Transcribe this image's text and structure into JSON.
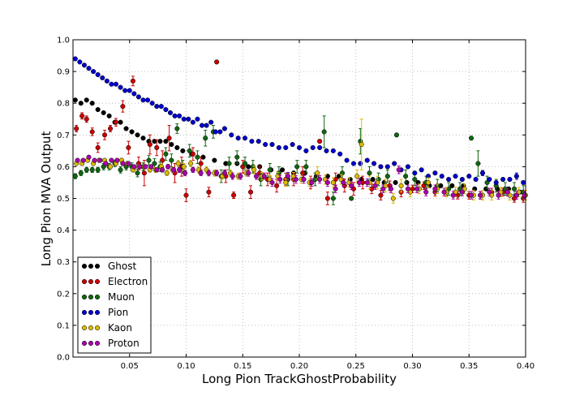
{
  "chart_data": {
    "type": "scatter",
    "xlabel": "Long Pion TrackGhostProbability",
    "ylabel": "Long Pion MVA Output",
    "xlim": [
      0.0,
      0.4
    ],
    "ylim": [
      0.0,
      1.0
    ],
    "xticks": [
      0.05,
      0.1,
      0.15,
      0.2,
      0.25,
      0.3,
      0.35,
      0.4
    ],
    "xtick_labels": [
      "0.05",
      "0.10",
      "0.15",
      "0.20",
      "0.25",
      "0.30",
      "0.35",
      "0.40"
    ],
    "yticks": [
      0.0,
      0.1,
      0.2,
      0.3,
      0.4,
      0.5,
      0.6,
      0.7,
      0.8,
      0.9,
      1.0
    ],
    "ytick_labels": [
      "0.0",
      "0.1",
      "0.2",
      "0.3",
      "0.4",
      "0.5",
      "0.6",
      "0.7",
      "0.8",
      "0.9",
      "1.0"
    ],
    "grid": true,
    "legend_position": "lower-left",
    "series": [
      {
        "name": "Ghost",
        "color": "#000000",
        "x": [
          0.002,
          0.007,
          0.012,
          0.017,
          0.022,
          0.027,
          0.032,
          0.037,
          0.042,
          0.047,
          0.052,
          0.057,
          0.062,
          0.067,
          0.072,
          0.077,
          0.082,
          0.087,
          0.092,
          0.097,
          0.105,
          0.115,
          0.125,
          0.135,
          0.145,
          0.155,
          0.165,
          0.175,
          0.185,
          0.195,
          0.205,
          0.215,
          0.225,
          0.235,
          0.245,
          0.255,
          0.265,
          0.275,
          0.285,
          0.295,
          0.305,
          0.315,
          0.325,
          0.335,
          0.345,
          0.355,
          0.365,
          0.375,
          0.385,
          0.395
        ],
        "y": [
          0.81,
          0.8,
          0.81,
          0.8,
          0.78,
          0.77,
          0.76,
          0.74,
          0.74,
          0.72,
          0.71,
          0.7,
          0.69,
          0.68,
          0.68,
          0.68,
          0.68,
          0.67,
          0.66,
          0.65,
          0.64,
          0.63,
          0.62,
          0.61,
          0.61,
          0.6,
          0.6,
          0.59,
          0.59,
          0.58,
          0.58,
          0.57,
          0.57,
          0.57,
          0.56,
          0.56,
          0.56,
          0.55,
          0.55,
          0.55,
          0.55,
          0.54,
          0.54,
          0.54,
          0.54,
          0.53,
          0.53,
          0.53,
          0.53,
          0.52
        ],
        "yerr": [
          0.004,
          0.004,
          0.004,
          0.004,
          0.004,
          0.004,
          0.004,
          0.004,
          0.004,
          0.004,
          0.004,
          0.004,
          0.004,
          0.004,
          0.004,
          0.004,
          0.004,
          0.004,
          0.004,
          0.004,
          0.004,
          0.004,
          0.004,
          0.004,
          0.004,
          0.004,
          0.004,
          0.004,
          0.004,
          0.004,
          0.004,
          0.004,
          0.004,
          0.004,
          0.004,
          0.004,
          0.004,
          0.004,
          0.004,
          0.004,
          0.004,
          0.004,
          0.004,
          0.004,
          0.004,
          0.004,
          0.004,
          0.004,
          0.004,
          0.004
        ]
      },
      {
        "name": "Electron",
        "color": "#cc0000",
        "x": [
          0.003,
          0.008,
          0.012,
          0.017,
          0.022,
          0.028,
          0.033,
          0.038,
          0.044,
          0.049,
          0.053,
          0.058,
          0.063,
          0.068,
          0.074,
          0.079,
          0.085,
          0.09,
          0.096,
          0.1,
          0.106,
          0.113,
          0.12,
          0.127,
          0.135,
          0.142,
          0.15,
          0.157,
          0.165,
          0.172,
          0.18,
          0.188,
          0.195,
          0.203,
          0.21,
          0.218,
          0.225,
          0.232,
          0.24,
          0.248,
          0.256,
          0.264,
          0.272,
          0.28,
          0.29,
          0.3,
          0.31,
          0.32,
          0.33,
          0.34,
          0.35,
          0.36,
          0.37,
          0.38,
          0.39,
          0.398
        ],
        "y": [
          0.72,
          0.76,
          0.75,
          0.71,
          0.66,
          0.7,
          0.72,
          0.74,
          0.79,
          0.66,
          0.87,
          0.61,
          0.58,
          0.67,
          0.66,
          0.62,
          0.69,
          0.58,
          0.6,
          0.51,
          0.64,
          0.61,
          0.52,
          0.93,
          0.57,
          0.51,
          0.6,
          0.52,
          0.58,
          0.56,
          0.54,
          0.56,
          0.56,
          0.58,
          0.55,
          0.68,
          0.5,
          0.56,
          0.54,
          0.53,
          0.55,
          0.53,
          0.51,
          0.54,
          0.52,
          0.53,
          0.54,
          0.52,
          0.52,
          0.51,
          0.51,
          0.51,
          0.52,
          0.52,
          0.5,
          0.5
        ],
        "yerr": [
          0.01,
          0.01,
          0.01,
          0.012,
          0.015,
          0.015,
          0.01,
          0.012,
          0.018,
          0.02,
          0.015,
          0.02,
          0.04,
          0.03,
          0.025,
          0.03,
          0.04,
          0.03,
          0.03,
          0.02,
          0.02,
          0.02,
          0.015,
          0.005,
          0.02,
          0.01,
          0.02,
          0.02,
          0.02,
          0.02,
          0.02,
          0.02,
          0.02,
          0.02,
          0.02,
          0.005,
          0.02,
          0.02,
          0.02,
          0.02,
          0.02,
          0.015,
          0.015,
          0.015,
          0.015,
          0.012,
          0.012,
          0.012,
          0.012,
          0.012,
          0.012,
          0.012,
          0.012,
          0.012,
          0.012,
          0.012
        ]
      },
      {
        "name": "Muon",
        "color": "#116611",
        "x": [
          0.002,
          0.007,
          0.012,
          0.017,
          0.022,
          0.027,
          0.032,
          0.037,
          0.042,
          0.047,
          0.052,
          0.057,
          0.062,
          0.067,
          0.072,
          0.077,
          0.082,
          0.087,
          0.092,
          0.097,
          0.103,
          0.11,
          0.117,
          0.124,
          0.131,
          0.138,
          0.145,
          0.152,
          0.159,
          0.166,
          0.174,
          0.182,
          0.19,
          0.198,
          0.206,
          0.214,
          0.222,
          0.23,
          0.238,
          0.246,
          0.254,
          0.262,
          0.27,
          0.278,
          0.286,
          0.294,
          0.302,
          0.312,
          0.322,
          0.332,
          0.342,
          0.352,
          0.358,
          0.366,
          0.374,
          0.382,
          0.39,
          0.398
        ],
        "y": [
          0.57,
          0.58,
          0.59,
          0.59,
          0.59,
          0.6,
          0.6,
          0.61,
          0.59,
          0.6,
          0.6,
          0.58,
          0.6,
          0.62,
          0.61,
          0.6,
          0.64,
          0.62,
          0.72,
          0.6,
          0.65,
          0.63,
          0.69,
          0.71,
          0.57,
          0.61,
          0.63,
          0.61,
          0.6,
          0.56,
          0.59,
          0.58,
          0.56,
          0.6,
          0.6,
          0.56,
          0.71,
          0.5,
          0.58,
          0.5,
          0.68,
          0.58,
          0.56,
          0.57,
          0.7,
          0.57,
          0.56,
          0.55,
          0.54,
          0.53,
          0.53,
          0.69,
          0.61,
          0.55,
          0.54,
          0.53,
          0.53,
          0.52
        ],
        "yerr": [
          0.008,
          0.008,
          0.008,
          0.008,
          0.008,
          0.01,
          0.01,
          0.01,
          0.01,
          0.01,
          0.012,
          0.012,
          0.012,
          0.015,
          0.015,
          0.015,
          0.02,
          0.02,
          0.015,
          0.02,
          0.02,
          0.02,
          0.025,
          0.02,
          0.02,
          0.02,
          0.02,
          0.02,
          0.02,
          0.02,
          0.02,
          0.02,
          0.02,
          0.02,
          0.02,
          0.02,
          0.05,
          0.02,
          0.02,
          0.005,
          0.04,
          0.02,
          0.02,
          0.02,
          0.005,
          0.02,
          0.02,
          0.02,
          0.02,
          0.02,
          0.02,
          0.005,
          0.04,
          0.02,
          0.02,
          0.02,
          0.02,
          0.02
        ]
      },
      {
        "name": "Pion",
        "color": "#0000cc",
        "x": [
          0.002,
          0.006,
          0.01,
          0.014,
          0.018,
          0.022,
          0.026,
          0.03,
          0.034,
          0.038,
          0.042,
          0.046,
          0.05,
          0.054,
          0.058,
          0.062,
          0.066,
          0.07,
          0.074,
          0.078,
          0.082,
          0.086,
          0.09,
          0.094,
          0.098,
          0.102,
          0.106,
          0.11,
          0.114,
          0.118,
          0.122,
          0.126,
          0.13,
          0.134,
          0.14,
          0.146,
          0.152,
          0.158,
          0.164,
          0.17,
          0.176,
          0.182,
          0.188,
          0.194,
          0.2,
          0.206,
          0.212,
          0.218,
          0.224,
          0.23,
          0.236,
          0.242,
          0.248,
          0.254,
          0.26,
          0.266,
          0.272,
          0.278,
          0.284,
          0.29,
          0.296,
          0.302,
          0.308,
          0.314,
          0.32,
          0.326,
          0.332,
          0.338,
          0.344,
          0.35,
          0.356,
          0.362,
          0.368,
          0.374,
          0.38,
          0.386,
          0.392,
          0.398
        ],
        "y": [
          0.94,
          0.93,
          0.92,
          0.91,
          0.9,
          0.89,
          0.88,
          0.87,
          0.86,
          0.86,
          0.85,
          0.84,
          0.84,
          0.83,
          0.82,
          0.81,
          0.81,
          0.8,
          0.79,
          0.79,
          0.78,
          0.77,
          0.76,
          0.76,
          0.75,
          0.75,
          0.74,
          0.75,
          0.73,
          0.73,
          0.74,
          0.71,
          0.71,
          0.72,
          0.7,
          0.69,
          0.69,
          0.68,
          0.68,
          0.67,
          0.67,
          0.66,
          0.66,
          0.67,
          0.66,
          0.65,
          0.66,
          0.66,
          0.65,
          0.65,
          0.64,
          0.62,
          0.61,
          0.61,
          0.62,
          0.61,
          0.6,
          0.6,
          0.61,
          0.59,
          0.6,
          0.58,
          0.59,
          0.57,
          0.58,
          0.57,
          0.56,
          0.57,
          0.56,
          0.57,
          0.56,
          0.58,
          0.56,
          0.55,
          0.56,
          0.56,
          0.57,
          0.55
        ],
        "yerr": [
          0.003,
          0.003,
          0.003,
          0.003,
          0.003,
          0.003,
          0.003,
          0.003,
          0.003,
          0.003,
          0.003,
          0.003,
          0.003,
          0.003,
          0.003,
          0.003,
          0.003,
          0.003,
          0.003,
          0.003,
          0.003,
          0.003,
          0.003,
          0.003,
          0.003,
          0.003,
          0.003,
          0.003,
          0.003,
          0.003,
          0.003,
          0.003,
          0.003,
          0.003,
          0.004,
          0.004,
          0.004,
          0.004,
          0.004,
          0.004,
          0.004,
          0.004,
          0.004,
          0.004,
          0.004,
          0.004,
          0.004,
          0.004,
          0.004,
          0.004,
          0.004,
          0.004,
          0.004,
          0.005,
          0.005,
          0.005,
          0.005,
          0.005,
          0.005,
          0.005,
          0.005,
          0.005,
          0.005,
          0.005,
          0.005,
          0.005,
          0.005,
          0.005,
          0.005,
          0.005,
          0.005,
          0.008,
          0.005,
          0.005,
          0.005,
          0.005,
          0.01,
          0.005
        ]
      },
      {
        "name": "Kaon",
        "color": "#ddbb00",
        "x": [
          0.003,
          0.008,
          0.013,
          0.018,
          0.023,
          0.028,
          0.033,
          0.038,
          0.043,
          0.048,
          0.053,
          0.058,
          0.063,
          0.068,
          0.073,
          0.078,
          0.083,
          0.088,
          0.093,
          0.098,
          0.104,
          0.111,
          0.118,
          0.125,
          0.132,
          0.139,
          0.146,
          0.153,
          0.16,
          0.167,
          0.174,
          0.181,
          0.188,
          0.195,
          0.202,
          0.209,
          0.216,
          0.223,
          0.23,
          0.237,
          0.244,
          0.251,
          0.255,
          0.262,
          0.269,
          0.276,
          0.283,
          0.29,
          0.298,
          0.306,
          0.314,
          0.322,
          0.33,
          0.338,
          0.346,
          0.354,
          0.362,
          0.37,
          0.378,
          0.386,
          0.394,
          0.4
        ],
        "y": [
          0.61,
          0.61,
          0.62,
          0.61,
          0.62,
          0.62,
          0.6,
          0.61,
          0.62,
          0.61,
          0.59,
          0.6,
          0.6,
          0.59,
          0.59,
          0.6,
          0.58,
          0.59,
          0.61,
          0.6,
          0.61,
          0.59,
          0.59,
          0.58,
          0.57,
          0.58,
          0.57,
          0.58,
          0.59,
          0.57,
          0.56,
          0.57,
          0.55,
          0.57,
          0.56,
          0.55,
          0.58,
          0.56,
          0.55,
          0.56,
          0.55,
          0.57,
          0.67,
          0.55,
          0.55,
          0.54,
          0.5,
          0.54,
          0.52,
          0.53,
          0.55,
          0.53,
          0.52,
          0.52,
          0.53,
          0.51,
          0.51,
          0.51,
          0.52,
          0.51,
          0.52,
          0.51
        ],
        "yerr": [
          0.005,
          0.005,
          0.005,
          0.005,
          0.005,
          0.005,
          0.006,
          0.006,
          0.006,
          0.006,
          0.007,
          0.007,
          0.007,
          0.007,
          0.008,
          0.008,
          0.008,
          0.008,
          0.01,
          0.01,
          0.01,
          0.01,
          0.01,
          0.01,
          0.01,
          0.01,
          0.01,
          0.01,
          0.012,
          0.012,
          0.012,
          0.012,
          0.012,
          0.012,
          0.012,
          0.012,
          0.02,
          0.015,
          0.015,
          0.015,
          0.015,
          0.02,
          0.08,
          0.02,
          0.02,
          0.02,
          0.015,
          0.02,
          0.015,
          0.015,
          0.015,
          0.015,
          0.015,
          0.015,
          0.015,
          0.015,
          0.015,
          0.015,
          0.015,
          0.015,
          0.015,
          0.015
        ]
      },
      {
        "name": "Proton",
        "color": "#aa00aa",
        "x": [
          0.004,
          0.009,
          0.014,
          0.019,
          0.024,
          0.029,
          0.034,
          0.039,
          0.044,
          0.049,
          0.054,
          0.059,
          0.064,
          0.069,
          0.074,
          0.079,
          0.084,
          0.089,
          0.094,
          0.099,
          0.106,
          0.113,
          0.12,
          0.127,
          0.134,
          0.141,
          0.148,
          0.155,
          0.162,
          0.169,
          0.176,
          0.183,
          0.19,
          0.197,
          0.204,
          0.211,
          0.218,
          0.225,
          0.232,
          0.239,
          0.246,
          0.253,
          0.26,
          0.267,
          0.274,
          0.281,
          0.288,
          0.296,
          0.304,
          0.312,
          0.32,
          0.328,
          0.336,
          0.344,
          0.352,
          0.36,
          0.368,
          0.376,
          0.384,
          0.392,
          0.399
        ],
        "y": [
          0.62,
          0.62,
          0.63,
          0.62,
          0.62,
          0.61,
          0.62,
          0.62,
          0.61,
          0.61,
          0.6,
          0.6,
          0.6,
          0.6,
          0.59,
          0.59,
          0.6,
          0.59,
          0.59,
          0.58,
          0.59,
          0.58,
          0.58,
          0.58,
          0.58,
          0.57,
          0.57,
          0.58,
          0.57,
          0.57,
          0.55,
          0.56,
          0.57,
          0.56,
          0.56,
          0.55,
          0.56,
          0.55,
          0.53,
          0.55,
          0.54,
          0.55,
          0.55,
          0.54,
          0.53,
          0.53,
          0.59,
          0.53,
          0.53,
          0.52,
          0.53,
          0.52,
          0.51,
          0.52,
          0.51,
          0.51,
          0.52,
          0.51,
          0.52,
          0.51,
          0.51
        ],
        "yerr": [
          0.004,
          0.004,
          0.004,
          0.004,
          0.004,
          0.005,
          0.005,
          0.005,
          0.005,
          0.005,
          0.006,
          0.006,
          0.006,
          0.006,
          0.006,
          0.007,
          0.007,
          0.007,
          0.008,
          0.008,
          0.008,
          0.008,
          0.009,
          0.009,
          0.009,
          0.01,
          0.01,
          0.01,
          0.01,
          0.01,
          0.012,
          0.012,
          0.012,
          0.012,
          0.012,
          0.012,
          0.012,
          0.012,
          0.012,
          0.012,
          0.012,
          0.012,
          0.012,
          0.012,
          0.012,
          0.012,
          0.012,
          0.012,
          0.012,
          0.012,
          0.012,
          0.012,
          0.012,
          0.012,
          0.012,
          0.012,
          0.012,
          0.012,
          0.012,
          0.012,
          0.012
        ]
      }
    ]
  }
}
